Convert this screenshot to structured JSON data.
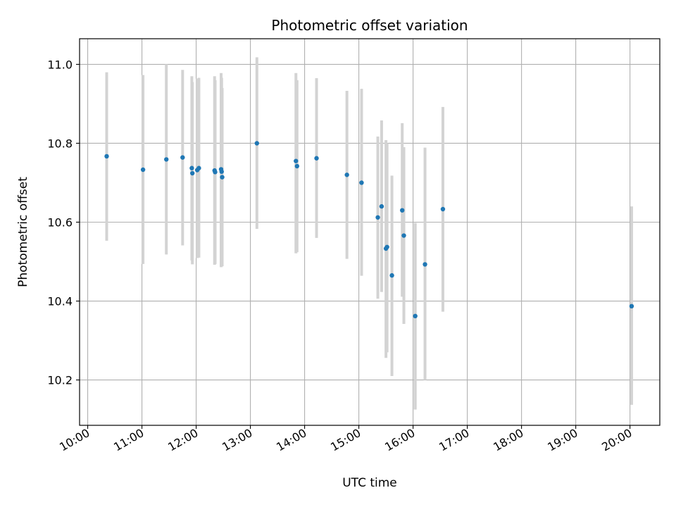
{
  "chart_data": {
    "type": "scatter",
    "title": "Photometric offset variation",
    "xlabel": "UTC time",
    "ylabel": "Photometric offset",
    "x_unit": "hours UTC",
    "xlim": [
      9.85,
      20.55
    ],
    "ylim": [
      10.085,
      11.065
    ],
    "xticks": [
      {
        "x": 10,
        "label": "10:00"
      },
      {
        "x": 11,
        "label": "11:00"
      },
      {
        "x": 12,
        "label": "12:00"
      },
      {
        "x": 13,
        "label": "13:00"
      },
      {
        "x": 14,
        "label": "14:00"
      },
      {
        "x": 15,
        "label": "15:00"
      },
      {
        "x": 16,
        "label": "16:00"
      },
      {
        "x": 17,
        "label": "17:00"
      },
      {
        "x": 18,
        "label": "18:00"
      },
      {
        "x": 19,
        "label": "19:00"
      },
      {
        "x": 20,
        "label": "20:00"
      }
    ],
    "yticks": [
      {
        "y": 10.2,
        "label": "10.2"
      },
      {
        "y": 10.4,
        "label": "10.4"
      },
      {
        "y": 10.6,
        "label": "10.6"
      },
      {
        "y": 10.8,
        "label": "10.8"
      },
      {
        "y": 11.0,
        "label": "11.0"
      }
    ],
    "grid": true,
    "marker_color": "#1f77b4",
    "errorbar_color": "#d3d3d3",
    "points": [
      {
        "x": 10.35,
        "y": 10.767,
        "lo": 10.553,
        "hi": 10.98
      },
      {
        "x": 11.02,
        "y": 10.733,
        "lo": 10.494,
        "hi": 10.973
      },
      {
        "x": 11.45,
        "y": 10.759,
        "lo": 10.518,
        "hi": 11.0
      },
      {
        "x": 11.75,
        "y": 10.764,
        "lo": 10.541,
        "hi": 10.986
      },
      {
        "x": 11.92,
        "y": 10.737,
        "lo": 10.503,
        "hi": 10.97
      },
      {
        "x": 11.93,
        "y": 10.724,
        "lo": 10.493,
        "hi": 10.955
      },
      {
        "x": 12.02,
        "y": 10.732,
        "lo": 10.509,
        "hi": 10.964
      },
      {
        "x": 12.05,
        "y": 10.737,
        "lo": 10.51,
        "hi": 10.966
      },
      {
        "x": 12.34,
        "y": 10.731,
        "lo": 10.492,
        "hi": 10.97
      },
      {
        "x": 12.35,
        "y": 10.727,
        "lo": 10.494,
        "hi": 10.96
      },
      {
        "x": 12.46,
        "y": 10.734,
        "lo": 10.486,
        "hi": 10.978
      },
      {
        "x": 12.47,
        "y": 10.728,
        "lo": 10.49,
        "hi": 10.966
      },
      {
        "x": 12.48,
        "y": 10.714,
        "lo": 10.488,
        "hi": 10.94
      },
      {
        "x": 13.12,
        "y": 10.8,
        "lo": 10.583,
        "hi": 11.018
      },
      {
        "x": 13.84,
        "y": 10.755,
        "lo": 10.521,
        "hi": 10.978
      },
      {
        "x": 13.86,
        "y": 10.742,
        "lo": 10.524,
        "hi": 10.96
      },
      {
        "x": 14.22,
        "y": 10.762,
        "lo": 10.56,
        "hi": 10.965
      },
      {
        "x": 14.78,
        "y": 10.72,
        "lo": 10.507,
        "hi": 10.933
      },
      {
        "x": 15.05,
        "y": 10.7,
        "lo": 10.464,
        "hi": 10.938
      },
      {
        "x": 15.35,
        "y": 10.612,
        "lo": 10.406,
        "hi": 10.817
      },
      {
        "x": 15.42,
        "y": 10.64,
        "lo": 10.423,
        "hi": 10.858
      },
      {
        "x": 15.5,
        "y": 10.533,
        "lo": 10.256,
        "hi": 10.808
      },
      {
        "x": 15.52,
        "y": 10.537,
        "lo": 10.27,
        "hi": 10.8
      },
      {
        "x": 15.61,
        "y": 10.465,
        "lo": 10.21,
        "hi": 10.718
      },
      {
        "x": 15.8,
        "y": 10.63,
        "lo": 10.411,
        "hi": 10.851
      },
      {
        "x": 15.83,
        "y": 10.566,
        "lo": 10.342,
        "hi": 10.79
      },
      {
        "x": 16.04,
        "y": 10.362,
        "lo": 10.125,
        "hi": 10.598
      },
      {
        "x": 16.22,
        "y": 10.493,
        "lo": 10.2,
        "hi": 10.789
      },
      {
        "x": 16.55,
        "y": 10.633,
        "lo": 10.373,
        "hi": 10.892
      },
      {
        "x": 20.03,
        "y": 10.387,
        "lo": 10.137,
        "hi": 10.64
      }
    ]
  }
}
